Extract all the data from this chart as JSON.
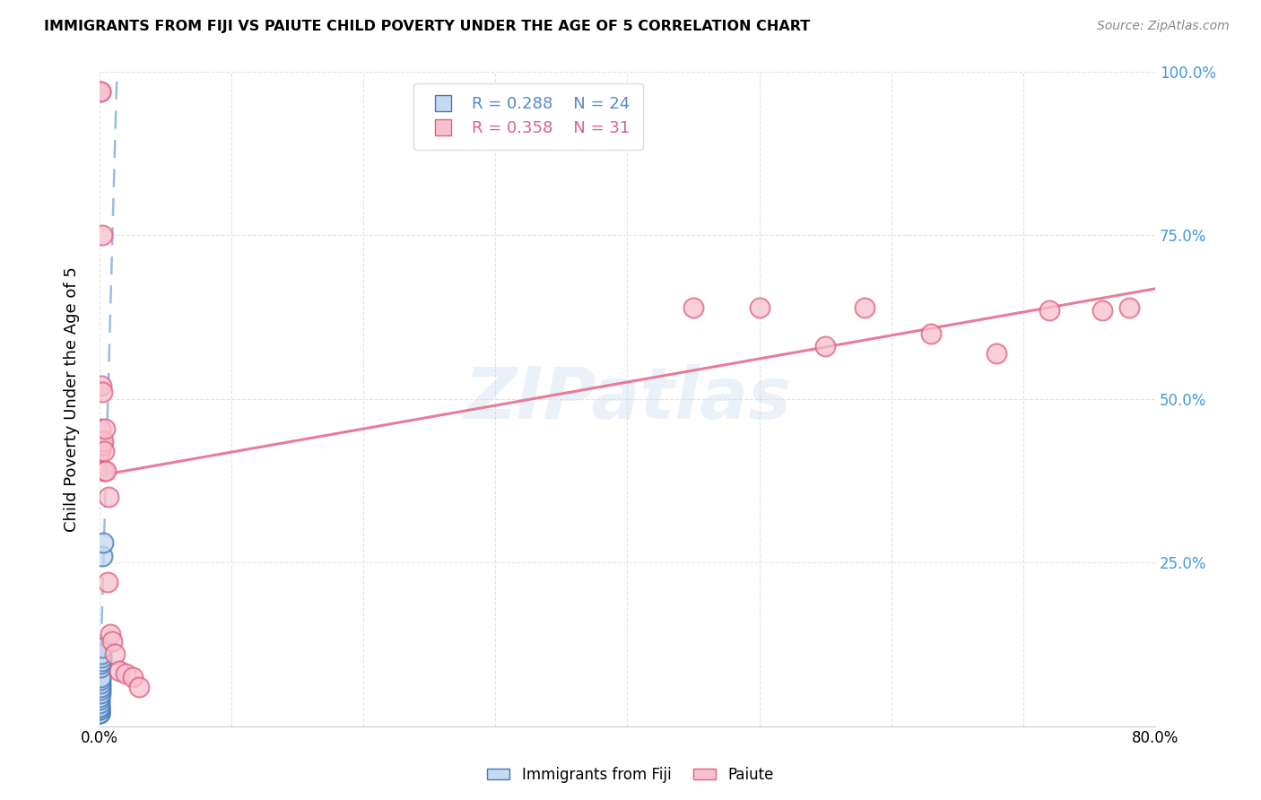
{
  "title": "IMMIGRANTS FROM FIJI VS PAIUTE CHILD POVERTY UNDER THE AGE OF 5 CORRELATION CHART",
  "source": "Source: ZipAtlas.com",
  "ylabel": "Child Poverty Under the Age of 5",
  "fiji_R": 0.288,
  "fiji_N": 24,
  "paiute_R": 0.358,
  "paiute_N": 31,
  "fiji_face_color": "#c5d9f0",
  "paiute_face_color": "#f8c0ce",
  "fiji_edge_color": "#4477bb",
  "paiute_edge_color": "#e06080",
  "fiji_line_color": "#8aaedd",
  "paiute_line_color": "#e87090",
  "right_axis_color": "#4499dd",
  "legend_fiji_color": "#5588cc",
  "legend_paiute_color": "#e06080",
  "watermark": "ZIPatlas",
  "xlim": [
    0.0,
    0.8
  ],
  "ylim": [
    0.0,
    1.0
  ],
  "fiji_x": [
    0.0,
    0.0,
    0.0,
    0.0,
    0.0,
    0.0,
    0.0,
    0.0,
    0.0,
    0.0,
    0.0005,
    0.0005,
    0.0005,
    0.0007,
    0.0007,
    0.0007,
    0.001,
    0.001,
    0.0012,
    0.0015,
    0.0018,
    0.002,
    0.0025,
    0.003
  ],
  "fiji_y": [
    0.02,
    0.02,
    0.02,
    0.025,
    0.025,
    0.03,
    0.03,
    0.035,
    0.04,
    0.045,
    0.05,
    0.055,
    0.06,
    0.065,
    0.07,
    0.075,
    0.09,
    0.095,
    0.1,
    0.105,
    0.11,
    0.12,
    0.26,
    0.28
  ],
  "paiute_x": [
    0.0005,
    0.0005,
    0.001,
    0.001,
    0.0015,
    0.002,
    0.0025,
    0.0025,
    0.003,
    0.0035,
    0.0035,
    0.004,
    0.005,
    0.006,
    0.007,
    0.008,
    0.01,
    0.012,
    0.015,
    0.02,
    0.025,
    0.03,
    0.45,
    0.5,
    0.55,
    0.58,
    0.63,
    0.68,
    0.72,
    0.76,
    0.78
  ],
  "paiute_y": [
    0.97,
    0.97,
    0.455,
    0.42,
    0.52,
    0.75,
    0.43,
    0.51,
    0.435,
    0.39,
    0.42,
    0.455,
    0.39,
    0.22,
    0.35,
    0.14,
    0.13,
    0.11,
    0.085,
    0.08,
    0.075,
    0.06,
    0.64,
    0.64,
    0.58,
    0.64,
    0.6,
    0.57,
    0.635,
    0.635,
    0.64
  ],
  "yticks": [
    0.0,
    0.25,
    0.5,
    0.75,
    1.0
  ],
  "ytick_labels_right": [
    "",
    "25.0%",
    "50.0%",
    "75.0%",
    "100.0%"
  ],
  "xticks": [
    0.0,
    0.1,
    0.2,
    0.3,
    0.4,
    0.5,
    0.6,
    0.7,
    0.8
  ],
  "xtick_labels": [
    "0.0%",
    "",
    "",
    "",
    "",
    "",
    "",
    "",
    "80.0%"
  ]
}
